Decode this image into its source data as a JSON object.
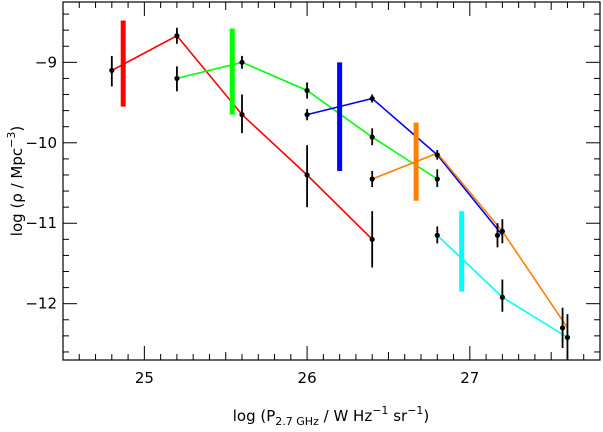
{
  "chart_data": {
    "type": "line",
    "xlabel": {
      "pre": "log (P",
      "sub": "2.7 GHz",
      "mid": " / W Hz",
      "sup1": "−1",
      "mid2": " sr",
      "sup2": "−1",
      "post": ")"
    },
    "ylabel": {
      "pre": "log (ρ / Mpc",
      "sup": "−3",
      "post": ")"
    },
    "xlim": [
      24.5,
      27.8
    ],
    "ylim": [
      -12.7,
      -8.25
    ],
    "x_ticks": [
      25,
      26,
      27
    ],
    "x_tick_labels": [
      "25",
      "26",
      "27"
    ],
    "y_ticks": [
      -9,
      -10,
      -11,
      -12
    ],
    "y_tick_labels": [
      "−9",
      "−10",
      "−11",
      "−12"
    ],
    "grid": false,
    "series": [
      {
        "color": "#ff0000",
        "points": [
          [
            24.8,
            -9.1
          ],
          [
            25.2,
            -8.67
          ],
          [
            25.6,
            -9.65
          ],
          [
            26.0,
            -10.4
          ],
          [
            26.4,
            -11.2
          ]
        ]
      },
      {
        "color": "#00ff00",
        "points": [
          [
            25.2,
            -9.2
          ],
          [
            25.6,
            -9.0
          ],
          [
            26.0,
            -9.35
          ],
          [
            26.4,
            -9.93
          ],
          [
            26.8,
            -10.45
          ]
        ]
      },
      {
        "color": "#0000ff",
        "points": [
          [
            26.0,
            -9.65
          ],
          [
            26.4,
            -9.45
          ],
          [
            26.8,
            -10.15
          ],
          [
            27.2,
            -11.15
          ]
        ]
      },
      {
        "color": "#ff8000",
        "points": [
          [
            26.4,
            -10.45
          ],
          [
            26.8,
            -10.13
          ],
          [
            27.2,
            -11.1
          ],
          [
            27.6,
            -12.3
          ]
        ]
      },
      {
        "color": "#00ffff",
        "points": [
          [
            26.8,
            -11.15
          ],
          [
            27.2,
            -11.92
          ],
          [
            27.6,
            -12.42
          ]
        ]
      }
    ],
    "error_bars": [
      {
        "x": 24.8,
        "y": -9.1,
        "lo": -9.3,
        "hi": -8.92
      },
      {
        "x": 25.2,
        "y": -8.67,
        "lo": -8.77,
        "hi": -8.57
      },
      {
        "x": 25.2,
        "y": -9.2,
        "lo": -9.36,
        "hi": -9.05
      },
      {
        "x": 25.6,
        "y": -9.0,
        "lo": -9.08,
        "hi": -8.92
      },
      {
        "x": 25.6,
        "y": -9.65,
        "lo": -9.88,
        "hi": -9.4
      },
      {
        "x": 26.0,
        "y": -9.35,
        "lo": -9.45,
        "hi": -9.25
      },
      {
        "x": 26.0,
        "y": -9.65,
        "lo": -9.72,
        "hi": -9.58
      },
      {
        "x": 26.0,
        "y": -10.4,
        "lo": -10.8,
        "hi": -10.03
      },
      {
        "x": 26.4,
        "y": -9.45,
        "lo": -9.5,
        "hi": -9.4
      },
      {
        "x": 26.4,
        "y": -9.93,
        "lo": -10.03,
        "hi": -9.82
      },
      {
        "x": 26.4,
        "y": -10.45,
        "lo": -10.55,
        "hi": -10.35
      },
      {
        "x": 26.4,
        "y": -11.2,
        "lo": -11.55,
        "hi": -10.85
      },
      {
        "x": 26.8,
        "y": -10.15,
        "lo": -10.21,
        "hi": -10.09
      },
      {
        "x": 26.8,
        "y": -10.45,
        "lo": -10.55,
        "hi": -10.33
      },
      {
        "x": 26.8,
        "y": -11.15,
        "lo": -11.25,
        "hi": -11.04
      },
      {
        "x": 27.17,
        "y": -11.15,
        "lo": -11.3,
        "hi": -11.0
      },
      {
        "x": 27.2,
        "y": -11.1,
        "lo": -11.25,
        "hi": -10.95
      },
      {
        "x": 27.2,
        "y": -11.92,
        "lo": -12.1,
        "hi": -11.7
      },
      {
        "x": 27.57,
        "y": -12.3,
        "lo": -12.55,
        "hi": -12.05
      },
      {
        "x": 27.6,
        "y": -12.42,
        "lo": -12.7,
        "hi": -12.13
      }
    ],
    "range_bars": [
      {
        "color": "#ff0000",
        "x": 24.87,
        "lo": -9.55,
        "hi": -8.48
      },
      {
        "color": "#00ff00",
        "x": 25.54,
        "lo": -9.65,
        "hi": -8.58
      },
      {
        "color": "#0000ff",
        "x": 26.2,
        "lo": -10.35,
        "hi": -9.0
      },
      {
        "color": "#ff8000",
        "x": 26.67,
        "lo": -10.72,
        "hi": -9.75
      },
      {
        "color": "#00ffff",
        "x": 26.95,
        "lo": -11.85,
        "hi": -10.85
      }
    ]
  }
}
